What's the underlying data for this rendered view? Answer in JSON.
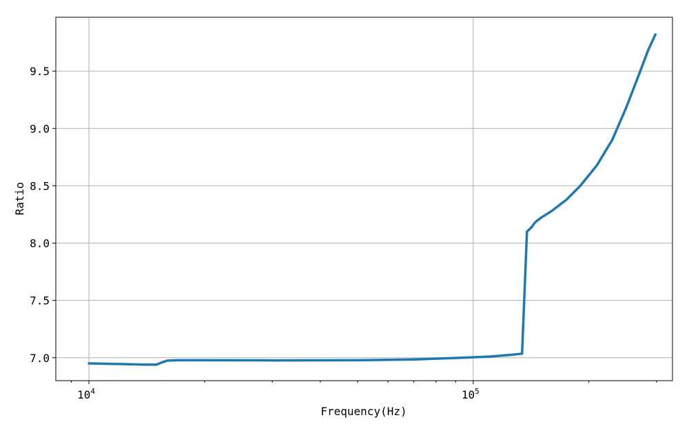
{
  "chart_data": {
    "type": "line",
    "xlabel": "Frequency(Hz)",
    "ylabel": "Ratio",
    "x_scale": "log",
    "xlim": [
      8200,
      330000
    ],
    "ylim": [
      6.8,
      9.97
    ],
    "grid": true,
    "x_major_ticks": [
      {
        "value": 10000,
        "base": "10",
        "exp": "4"
      },
      {
        "value": 100000,
        "base": "10",
        "exp": "5"
      }
    ],
    "y_ticks": [
      7.0,
      7.5,
      8.0,
      8.5,
      9.0,
      9.5
    ],
    "y_tick_labels": [
      "7.0",
      "7.5",
      "8.0",
      "8.5",
      "9.0",
      "9.5"
    ],
    "line_color": "#1f77b4",
    "series": [
      {
        "x": [
          10000,
          12000,
          14000,
          15000,
          15500,
          16000,
          17000,
          20000,
          30000,
          50000,
          70000,
          90000,
          110000,
          125000,
          134000,
          138000,
          140000,
          142000,
          144000,
          146000,
          150000,
          160000,
          175000,
          190000,
          210000,
          230000,
          250000,
          270000,
          285000,
          298000
        ],
        "y": [
          6.95,
          6.945,
          6.94,
          6.94,
          6.96,
          6.975,
          6.978,
          6.978,
          6.977,
          6.978,
          6.985,
          6.998,
          7.01,
          7.025,
          7.035,
          8.1,
          8.12,
          8.14,
          8.17,
          8.19,
          8.22,
          8.28,
          8.38,
          8.5,
          8.68,
          8.9,
          9.18,
          9.47,
          9.68,
          9.82
        ]
      }
    ]
  }
}
